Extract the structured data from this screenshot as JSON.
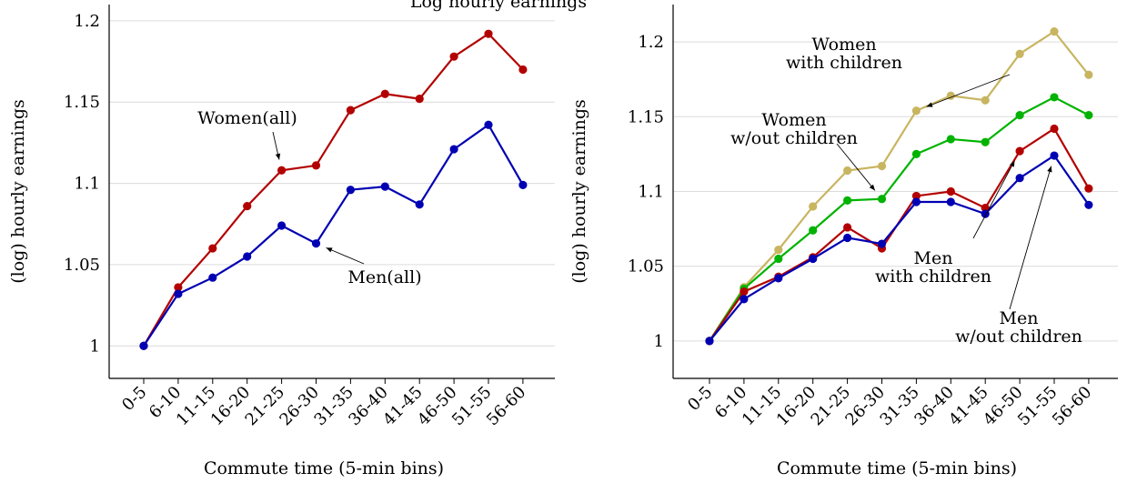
{
  "figure": {
    "title_fragment": "Log hourly earnings"
  },
  "chart_data": [
    {
      "type": "line",
      "xlabel": "Commute time (5-min bins)",
      "ylabel": "(log) hourly earnings",
      "categories": [
        "0-5",
        "6-10",
        "11-15",
        "16-20",
        "21-25",
        "26-30",
        "31-35",
        "36-40",
        "41-45",
        "46-50",
        "51-55",
        "56-60"
      ],
      "ylim": [
        0.98,
        1.21
      ],
      "yticks": [
        1,
        1.05,
        1.1,
        1.15,
        1.2
      ],
      "ytick_labels": [
        "1",
        "1.05",
        "1.1",
        "1.15",
        "1.2"
      ],
      "grid": true,
      "series": [
        {
          "name": "Women(all)",
          "color": "#b30000",
          "values": [
            1.0,
            1.036,
            1.06,
            1.086,
            1.108,
            1.111,
            1.145,
            1.155,
            1.152,
            1.178,
            1.192,
            1.17
          ]
        },
        {
          "name": "Men(all)",
          "color": "#0000b3",
          "values": [
            1.0,
            1.032,
            1.042,
            1.055,
            1.074,
            1.063,
            1.096,
            1.098,
            1.087,
            1.121,
            1.136,
            1.099
          ]
        }
      ],
      "annotations": [
        {
          "series": 0,
          "lines": [
            "Women(all)"
          ],
          "point_index": 4
        },
        {
          "series": 1,
          "lines": [
            "Men(all)"
          ],
          "point_index": 5
        }
      ]
    },
    {
      "type": "line",
      "xlabel": "Commute time (5-min bins)",
      "ylabel": "(log) hourly earnings",
      "categories": [
        "0-5",
        "6-10",
        "11-15",
        "16-20",
        "21-25",
        "26-30",
        "31-35",
        "36-40",
        "41-45",
        "46-50",
        "51-55",
        "56-60"
      ],
      "ylim": [
        0.975,
        1.225
      ],
      "yticks": [
        1,
        1.05,
        1.1,
        1.15,
        1.2
      ],
      "ytick_labels": [
        "1",
        "1.05",
        "1.1",
        "1.15",
        "1.2"
      ],
      "grid": true,
      "series": [
        {
          "name": "Women with children",
          "color": "#c8b560",
          "values": [
            1.0,
            1.036,
            1.061,
            1.09,
            1.114,
            1.117,
            1.154,
            1.164,
            1.161,
            1.192,
            1.207,
            1.178
          ]
        },
        {
          "name": "Women w/out children",
          "color": "#00b300",
          "values": [
            1.0,
            1.035,
            1.055,
            1.074,
            1.094,
            1.095,
            1.125,
            1.135,
            1.133,
            1.151,
            1.163,
            1.151
          ]
        },
        {
          "name": "Men with children",
          "color": "#b30000",
          "values": [
            1.0,
            1.033,
            1.043,
            1.056,
            1.076,
            1.062,
            1.097,
            1.1,
            1.089,
            1.127,
            1.142,
            1.102
          ]
        },
        {
          "name": "Men w/out children",
          "color": "#0000b3",
          "values": [
            1.0,
            1.028,
            1.042,
            1.055,
            1.069,
            1.065,
            1.093,
            1.093,
            1.085,
            1.109,
            1.124,
            1.091
          ]
        }
      ],
      "annotations": [
        {
          "series": 0,
          "lines": [
            "Women",
            "with children"
          ],
          "point_index": 6
        },
        {
          "series": 1,
          "lines": [
            "Women",
            "w/out children"
          ],
          "point_index": 5
        },
        {
          "series": 2,
          "lines": [
            "Men",
            "with children"
          ],
          "point_index": 9
        },
        {
          "series": 3,
          "lines": [
            "Men",
            "w/out children"
          ],
          "point_index": 10
        }
      ]
    }
  ]
}
